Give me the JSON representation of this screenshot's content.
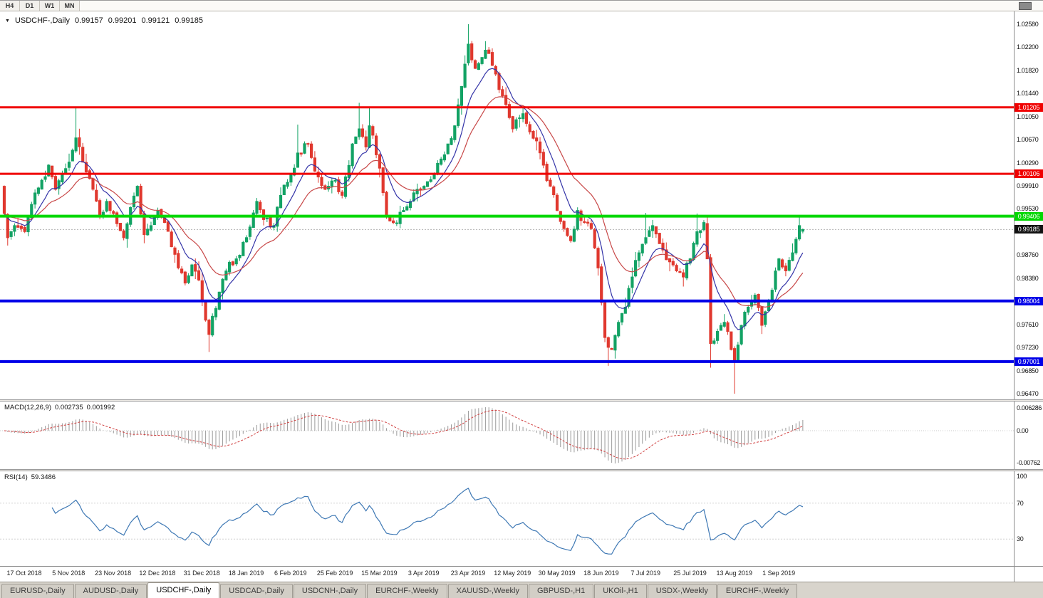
{
  "toolbar": {
    "timeframes": [
      "H4",
      "D1",
      "W1",
      "MN"
    ]
  },
  "chart": {
    "header": {
      "symbol": "USDCHF-,Daily",
      "open": "0.99157",
      "high": "0.99201",
      "low": "0.99121",
      "close": "0.99185"
    },
    "axis_labels": [
      "1.02580",
      "1.02200",
      "1.01820",
      "1.01440",
      "1.01050",
      "1.00670",
      "1.00290",
      "0.99910",
      "0.99530",
      "0.98760",
      "0.98380",
      "0.97610",
      "0.97230",
      "0.96850",
      "0.96470"
    ],
    "levels": [
      {
        "price": 1.01205,
        "label": "1.01205",
        "color": "#f00000",
        "width": 3,
        "role": "resistance"
      },
      {
        "price": 1.00106,
        "label": "1.00106",
        "color": "#f00000",
        "width": 3,
        "role": "resistance"
      },
      {
        "price": 0.99406,
        "label": "0.99406",
        "color": "#00d800",
        "width": 4,
        "role": "resistance"
      },
      {
        "price": 0.98004,
        "label": "0.98004",
        "color": "#0000e8",
        "width": 4,
        "role": "support"
      },
      {
        "price": 0.97001,
        "label": "0.97001",
        "color": "#0000e8",
        "width": 4,
        "role": "support"
      }
    ],
    "current_price": {
      "value": 0.99185,
      "label": "0.99185"
    }
  },
  "macd": {
    "label": "MACD(12,26,9)",
    "value_main": "0.002735",
    "value_signal": "0.001992",
    "axis_max": "0.006286",
    "axis_zero": "0.00",
    "axis_min": "-0.00762"
  },
  "rsi": {
    "label": "RSI(14)",
    "value": "59.3486",
    "axis": [
      "100",
      "70",
      "30"
    ],
    "level_lines": [
      70,
      30
    ]
  },
  "tabs": [
    {
      "label": "EURUSD-,Daily",
      "active": false
    },
    {
      "label": "AUDUSD-,Daily",
      "active": false
    },
    {
      "label": "USDCHF-,Daily",
      "active": true
    },
    {
      "label": "USDCAD-,Daily",
      "active": false
    },
    {
      "label": "USDCNH-,Daily",
      "active": false
    },
    {
      "label": "EURCHF-,Weekly",
      "active": false
    },
    {
      "label": "XAUUSD-,Weekly",
      "active": false
    },
    {
      "label": "GBPUSD-,H1",
      "active": false
    },
    {
      "label": "UKOil-,H1",
      "active": false
    },
    {
      "label": "USDX-,Weekly",
      "active": false
    },
    {
      "label": "EURCHF-,Weekly",
      "active": false
    }
  ],
  "colors": {
    "bull": "#12a264",
    "bear": "#e0382e",
    "ma_fast": "#3434a8",
    "ma_slow": "#c84848",
    "macd_histogram": "#9a9a9a",
    "macd_signal": "#d04040",
    "rsi_line": "#3e78b4",
    "current_price_bg": "#111111"
  },
  "chart_data": {
    "type": "candlestick",
    "title": "USDCHF-,Daily",
    "y_range": [
      0.9647,
      1.0258
    ],
    "candles_count": 235,
    "seed": 11,
    "x_axis_dates": [
      "17 Oct 2018",
      "5 Nov 2018",
      "23 Nov 2018",
      "12 Dec 2018",
      "31 Dec 2018",
      "18 Jan 2019",
      "6 Feb 2019",
      "25 Feb 2019",
      "15 Mar 2019",
      "3 Apr 2019",
      "23 Apr 2019",
      "12 May 2019",
      "30 May 2019",
      "18 Jun 2019",
      "7 Jul 2019",
      "25 Jul 2019",
      "13 Aug 2019",
      "1 Sep 2019"
    ],
    "last_ohlc": {
      "open": 0.99157,
      "high": 0.99201,
      "low": 0.99121,
      "close": 0.99185
    },
    "close_anchors": [
      [
        0,
        0.9945
      ],
      [
        1,
        0.9905
      ],
      [
        3,
        0.9925
      ],
      [
        6,
        0.9915
      ],
      [
        8,
        0.996
      ],
      [
        11,
        1.0
      ],
      [
        13,
        1.0025
      ],
      [
        15,
        0.9985
      ],
      [
        17,
        1.001
      ],
      [
        19,
        1.003
      ],
      [
        21,
        1.007
      ],
      [
        23,
        1.003
      ],
      [
        26,
        0.9985
      ],
      [
        28,
        0.994
      ],
      [
        30,
        0.9965
      ],
      [
        32,
        0.9945
      ],
      [
        35,
        0.9905
      ],
      [
        37,
        0.9955
      ],
      [
        39,
        0.999
      ],
      [
        41,
        0.991
      ],
      [
        43,
        0.9925
      ],
      [
        45,
        0.995
      ],
      [
        47,
        0.993
      ],
      [
        49,
        0.989
      ],
      [
        51,
        0.9855
      ],
      [
        53,
        0.983
      ],
      [
        55,
        0.986
      ],
      [
        57,
        0.9835
      ],
      [
        58,
        0.98
      ],
      [
        60,
        0.9745
      ],
      [
        61,
        0.9775
      ],
      [
        63,
        0.9815
      ],
      [
        65,
        0.985
      ],
      [
        68,
        0.987
      ],
      [
        71,
        0.9905
      ],
      [
        74,
        0.9965
      ],
      [
        76,
        0.9935
      ],
      [
        79,
        0.9925
      ],
      [
        81,
        0.9975
      ],
      [
        84,
        1.001
      ],
      [
        86,
        1.0045
      ],
      [
        89,
        1.006
      ],
      [
        91,
        1.0015
      ],
      [
        94,
        0.9985
      ],
      [
        97,
        1.0
      ],
      [
        99,
        0.9975
      ],
      [
        102,
        1.006
      ],
      [
        104,
        1.0085
      ],
      [
        106,
        1.0055
      ],
      [
        107,
        1.009
      ],
      [
        110,
        1.002
      ],
      [
        112,
        0.994
      ],
      [
        114,
        0.993
      ],
      [
        117,
        0.995
      ],
      [
        119,
        0.9965
      ],
      [
        121,
        0.9985
      ],
      [
        123,
        0.999
      ],
      [
        126,
        1.001
      ],
      [
        128,
        1.0035
      ],
      [
        130,
        1.006
      ],
      [
        132,
        1.009
      ],
      [
        134,
        1.0155
      ],
      [
        136,
        1.0225
      ],
      [
        138,
        1.0185
      ],
      [
        141,
        1.0215
      ],
      [
        143,
        1.019
      ],
      [
        145,
        1.015
      ],
      [
        147,
        1.0125
      ],
      [
        149,
        1.0085
      ],
      [
        152,
        1.011
      ],
      [
        154,
        1.008
      ],
      [
        156,
        1.0065
      ],
      [
        158,
        1.0025
      ],
      [
        160,
        0.999
      ],
      [
        162,
        0.995
      ],
      [
        164,
        0.992
      ],
      [
        166,
        0.99
      ],
      [
        168,
        0.995
      ],
      [
        170,
        0.993
      ],
      [
        172,
        0.992
      ],
      [
        174,
        0.9855
      ],
      [
        176,
        0.974
      ],
      [
        178,
        0.972
      ],
      [
        180,
        0.9765
      ],
      [
        182,
        0.979
      ],
      [
        184,
        0.984
      ],
      [
        186,
        0.988
      ],
      [
        188,
        0.9905
      ],
      [
        190,
        0.9925
      ],
      [
        192,
        0.9895
      ],
      [
        195,
        0.9865
      ],
      [
        197,
        0.985
      ],
      [
        199,
        0.984
      ],
      [
        201,
        0.987
      ],
      [
        203,
        0.9915
      ],
      [
        205,
        0.993
      ],
      [
        206,
        0.987
      ],
      [
        207,
        0.973
      ],
      [
        209,
        0.975
      ],
      [
        211,
        0.9765
      ],
      [
        213,
        0.972
      ],
      [
        214,
        0.97
      ],
      [
        216,
        0.976
      ],
      [
        218,
        0.979
      ],
      [
        220,
        0.981
      ],
      [
        222,
        0.976
      ],
      [
        224,
        0.98
      ],
      [
        226,
        0.985
      ],
      [
        227,
        0.987
      ],
      [
        229,
        0.985
      ],
      [
        231,
        0.988
      ],
      [
        233,
        0.9925
      ],
      [
        234,
        0.99185
      ]
    ],
    "wick_extremes": [
      {
        "i": 21,
        "high": 1.0122
      },
      {
        "i": 60,
        "low": 0.9716
      },
      {
        "i": 86,
        "high": 1.0092
      },
      {
        "i": 104,
        "high": 1.0128
      },
      {
        "i": 107,
        "high": 1.0122
      },
      {
        "i": 136,
        "high": 1.0258
      },
      {
        "i": 141,
        "high": 1.023
      },
      {
        "i": 177,
        "low": 0.9693
      },
      {
        "i": 188,
        "high": 0.9946
      },
      {
        "i": 203,
        "high": 0.9945
      },
      {
        "i": 207,
        "low": 0.969
      },
      {
        "i": 214,
        "low": 0.9647
      },
      {
        "i": 233,
        "high": 0.994
      }
    ],
    "moving_averages": [
      {
        "period": 9,
        "method": "ema",
        "color": "#3434a8"
      },
      {
        "period": 21,
        "method": "ema",
        "color": "#c84848"
      }
    ],
    "indicators": [
      {
        "name": "MACD",
        "params": "12,26,9",
        "values": [
          0.002735,
          0.001992
        ],
        "axis": [
          0.006286,
          0,
          -0.00762
        ]
      },
      {
        "name": "RSI",
        "params": "14",
        "value": 59.3486,
        "levels": [
          70,
          30
        ]
      }
    ]
  }
}
